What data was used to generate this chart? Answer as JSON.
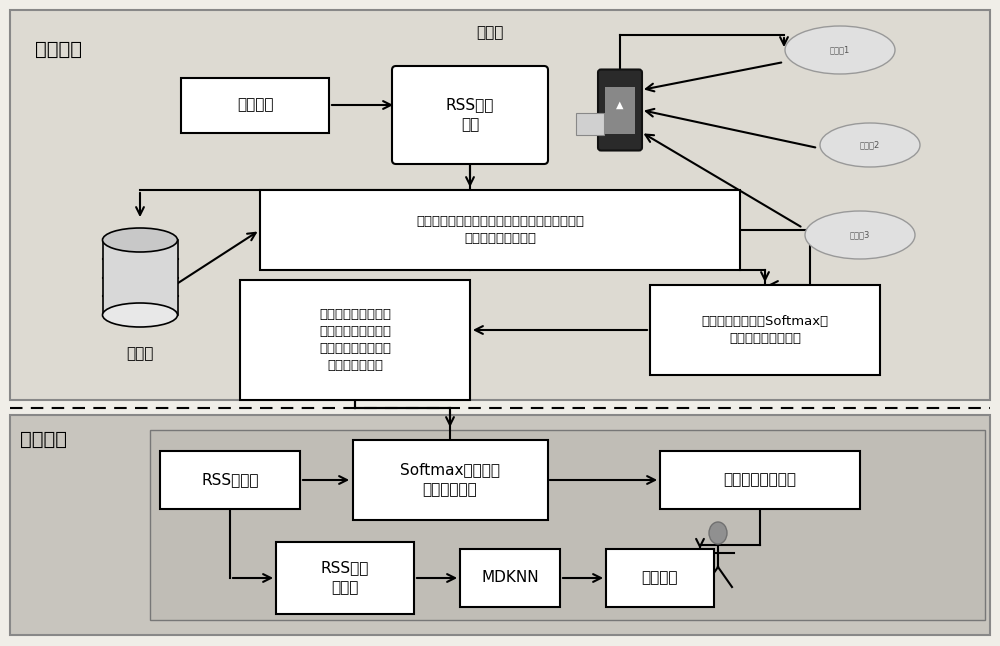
{
  "bg_color": "#f0eee8",
  "offline_bg": "#dddad2",
  "online_outer_bg": "#c8c5be",
  "online_inner_bg": "#c0bdb6",
  "box_facecolor": "#ffffff",
  "box_edgecolor": "#000000",
  "offline_label": "离线阶段",
  "online_label": "在线阶段",
  "kehu_text": "客户端",
  "zhiwen_text": "指纹库",
  "wangge_text": "网格划分",
  "rss_text": "RSS信号\n采集",
  "classify_text": "为检测区域内的多个楼层进行分类，为每个楼层\n分配对应的楼层标签",
  "train_text": "利用梯度下降法对Softmax多\n分类识别器进行训练",
  "build_text": "根据最小交叉熵损失\n函数对应的最佳参数\n集合构建多分类识别\n器楼层判别模型",
  "rss2_text": "RSS值采集",
  "softmax_text": "Softmax多分类器\n楼层判别模型",
  "getfloor_text": "得到目标所在楼层",
  "rssdb_text": "RSS指纹\n数据库",
  "mdknn_text": "MDKNN",
  "position_text": "位置信息",
  "ap_labels": [
    "接入点1",
    "接入点2",
    "接入点3"
  ]
}
